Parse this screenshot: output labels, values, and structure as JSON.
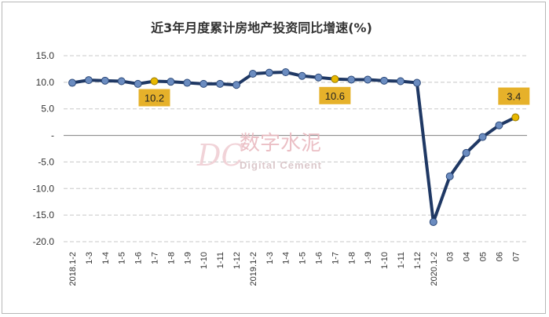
{
  "chart_data": {
    "type": "line",
    "title": "近3年月度累计房地产投资同比增速(%)",
    "categories": [
      "2018.1-2",
      "1-3",
      "1-4",
      "1-5",
      "1-6",
      "1-7",
      "1-8",
      "1-9",
      "1-10",
      "1-11",
      "1-12",
      "2019.1-2",
      "1-3",
      "1-4",
      "1-5",
      "1-6",
      "1-7",
      "1-8",
      "1-9",
      "1-10",
      "1-11",
      "1-12",
      "2020.1-2",
      "03",
      "04",
      "05",
      "06",
      "07"
    ],
    "values": [
      9.9,
      10.4,
      10.3,
      10.2,
      9.7,
      10.2,
      10.1,
      9.9,
      9.7,
      9.7,
      9.5,
      11.6,
      11.8,
      11.9,
      11.2,
      10.9,
      10.6,
      10.5,
      10.5,
      10.3,
      10.2,
      9.9,
      -16.3,
      -7.7,
      -3.3,
      -0.3,
      1.9,
      3.4
    ],
    "ylim": [
      -20,
      15
    ],
    "yticks": [
      {
        "value": 15,
        "label": "15.0"
      },
      {
        "value": 10,
        "label": "10.0"
      },
      {
        "value": 5,
        "label": "5.0"
      },
      {
        "value": 0,
        "label": "-"
      },
      {
        "value": -5,
        "label": "-5.0"
      },
      {
        "value": -10,
        "label": "-10.0"
      },
      {
        "value": -15,
        "label": "-15.0"
      },
      {
        "value": -20,
        "label": "-20.0"
      }
    ],
    "grid": true,
    "highlights": [
      {
        "index": 5,
        "label": "10.2"
      },
      {
        "index": 16,
        "label": "10.6"
      },
      {
        "index": 27,
        "label": "3.4"
      }
    ],
    "colors": {
      "line": "#1f3864",
      "marker": "#6b8cc0",
      "highlight_marker": "#e8b800",
      "callout_fill": "#e6b12a",
      "grid": "#c8c8c8",
      "zero_line": "#808080"
    }
  },
  "watermark": {
    "logo": "DC",
    "chinese": "数字水泥",
    "english": "Digital Cement"
  }
}
